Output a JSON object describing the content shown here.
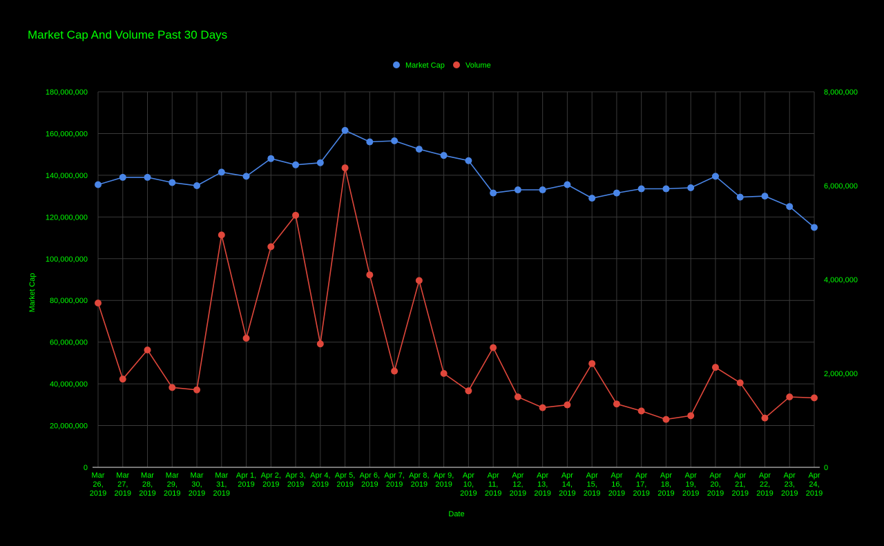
{
  "chart_data": {
    "type": "line",
    "title": "Market Cap And Volume Past 30 Days",
    "xlabel": "Date",
    "ylabel": "Market Cap",
    "y2label": "",
    "legend_position": "top",
    "grid": true,
    "ylim": [
      0,
      180000000
    ],
    "y2lim": [
      0,
      8000000
    ],
    "yticks": [
      "0",
      "20,000,000",
      "40,000,000",
      "60,000,000",
      "80,000,000",
      "100,000,000",
      "120,000,000",
      "140,000,000",
      "160,000,000",
      "180,000,000"
    ],
    "y2ticks": [
      "0",
      "2,000,000",
      "4,000,000",
      "6,000,000",
      "8,000,000"
    ],
    "categories": [
      [
        "Mar",
        "26,",
        "2019"
      ],
      [
        "Mar",
        "27,",
        "2019"
      ],
      [
        "Mar",
        "28,",
        "2019"
      ],
      [
        "Mar",
        "29,",
        "2019"
      ],
      [
        "Mar",
        "30,",
        "2019"
      ],
      [
        "Mar",
        "31,",
        "2019"
      ],
      [
        "Apr 1,",
        "2019"
      ],
      [
        "Apr 2,",
        "2019"
      ],
      [
        "Apr 3,",
        "2019"
      ],
      [
        "Apr 4,",
        "2019"
      ],
      [
        "Apr 5,",
        "2019"
      ],
      [
        "Apr 6,",
        "2019"
      ],
      [
        "Apr 7,",
        "2019"
      ],
      [
        "Apr 8,",
        "2019"
      ],
      [
        "Apr 9,",
        "2019"
      ],
      [
        "Apr",
        "10,",
        "2019"
      ],
      [
        "Apr",
        "11,",
        "2019"
      ],
      [
        "Apr",
        "12,",
        "2019"
      ],
      [
        "Apr",
        "13,",
        "2019"
      ],
      [
        "Apr",
        "14,",
        "2019"
      ],
      [
        "Apr",
        "15,",
        "2019"
      ],
      [
        "Apr",
        "16,",
        "2019"
      ],
      [
        "Apr",
        "17,",
        "2019"
      ],
      [
        "Apr",
        "18,",
        "2019"
      ],
      [
        "Apr",
        "19,",
        "2019"
      ],
      [
        "Apr",
        "20,",
        "2019"
      ],
      [
        "Apr",
        "21,",
        "2019"
      ],
      [
        "Apr",
        "22,",
        "2019"
      ],
      [
        "Apr",
        "23,",
        "2019"
      ],
      [
        "Apr",
        "24,",
        "2019"
      ]
    ],
    "series": [
      {
        "name": "Market Cap",
        "axis": "left",
        "color": "#4a86e8",
        "values": [
          135500000,
          139000000,
          139000000,
          136500000,
          135000000,
          141500000,
          139500000,
          148000000,
          145000000,
          146000000,
          161500000,
          156000000,
          156500000,
          152500000,
          149500000,
          147000000,
          131500000,
          133000000,
          133000000,
          135500000,
          129000000,
          131500000,
          133500000,
          133500000,
          134000000,
          139500000,
          129500000,
          130000000,
          125000000,
          115000000
        ]
      },
      {
        "name": "Volume",
        "axis": "right",
        "color": "#e0473b",
        "values": [
          3500000,
          1880000,
          2500000,
          1700000,
          1650000,
          4950000,
          2750000,
          4700000,
          5370000,
          2630000,
          6380000,
          4100000,
          2050000,
          3980000,
          2000000,
          1630000,
          2550000,
          1500000,
          1270000,
          1330000,
          2210000,
          1350000,
          1200000,
          1020000,
          1100000,
          2130000,
          1800000,
          1050000,
          1500000,
          1480000
        ]
      }
    ]
  },
  "colors": {
    "background": "#000000",
    "text": "#00ff00",
    "grid": "#3a3a3a",
    "baseline": "#9e9e9e"
  }
}
